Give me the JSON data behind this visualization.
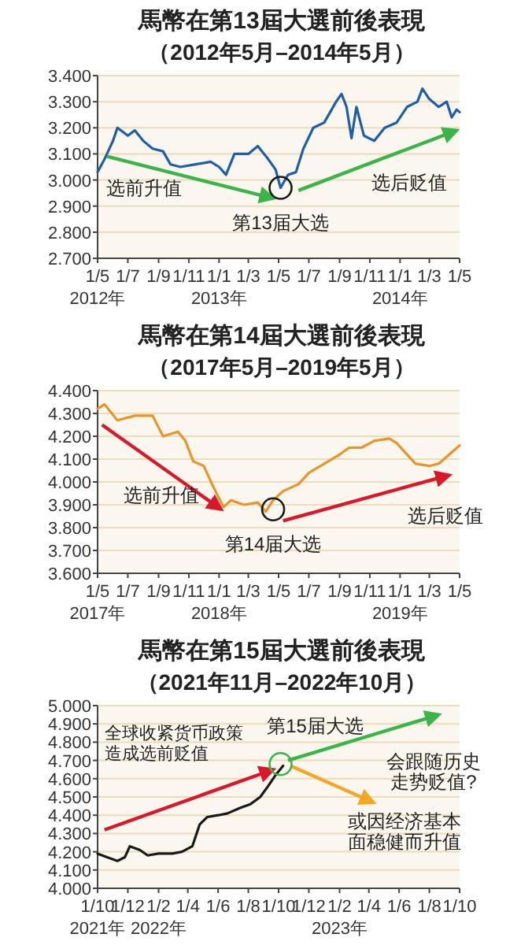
{
  "chart_data": [
    {
      "type": "line",
      "title": "馬幣在第13屆大選前後表現",
      "subtitle": "（2012年5月–2014年5月）",
      "grid": "y",
      "line_style": "solid",
      "marker": "none",
      "xlim": [
        "2012-05-01",
        "2014-05-01"
      ],
      "ylim": [
        2.7,
        3.4
      ],
      "xticks": [
        {
          "value": "2012-05-01",
          "label": "1/5\n2012年"
        },
        {
          "value": "2012-07-01",
          "label": "1/7"
        },
        {
          "value": "2012-09-01",
          "label": "1/9"
        },
        {
          "value": "2012-11-01",
          "label": "1/11"
        },
        {
          "value": "2013-01-01",
          "label": "1/1\n2013年"
        },
        {
          "value": "2013-03-01",
          "label": "1/3"
        },
        {
          "value": "2013-05-01",
          "label": "1/5"
        },
        {
          "value": "2013-07-01",
          "label": "1/7"
        },
        {
          "value": "2013-09-01",
          "label": "1/9"
        },
        {
          "value": "2013-11-01",
          "label": "1/11"
        },
        {
          "value": "2014-01-01",
          "label": "1/1\n2014年"
        },
        {
          "value": "2014-03-01",
          "label": "1/3"
        },
        {
          "value": "2014-05-01",
          "label": "1/5"
        }
      ],
      "yticks": [
        {
          "value": 2.7,
          "label": "2.700"
        },
        {
          "value": 2.8,
          "label": "2.800"
        },
        {
          "value": 2.9,
          "label": "2.900"
        },
        {
          "value": 3.0,
          "label": "3.000"
        },
        {
          "value": 3.1,
          "label": "3.100"
        },
        {
          "value": 3.2,
          "label": "3.200"
        },
        {
          "value": 3.3,
          "label": "3.300"
        },
        {
          "value": 3.4,
          "label": "3.400"
        }
      ],
      "annotations": [
        {
          "text": "第13届大选",
          "x": "2013-05-05",
          "y": 2.97
        }
      ],
      "series": [
        {
          "color": "#1f5fa8",
          "x": [
            "2012-05-01",
            "2012-05-15",
            "2012-06-01",
            "2012-06-10",
            "2012-07-01",
            "2012-07-15",
            "2012-08-01",
            "2012-08-20",
            "2012-09-10",
            "2012-09-25",
            "2012-10-15",
            "2012-11-15",
            "2012-12-15",
            "2013-01-01",
            "2013-01-15",
            "2013-02-01",
            "2013-03-01",
            "2013-03-20",
            "2013-04-10",
            "2013-04-25",
            "2013-05-05",
            "2013-05-20",
            "2013-06-05",
            "2013-06-20",
            "2013-07-10",
            "2013-08-01",
            "2013-08-25",
            "2013-09-05",
            "2013-09-15",
            "2013-09-25",
            "2013-10-05",
            "2013-10-20",
            "2013-11-10",
            "2013-12-01",
            "2013-12-25",
            "2014-01-15",
            "2014-02-05",
            "2014-02-15",
            "2014-03-01",
            "2014-03-20",
            "2014-04-05",
            "2014-04-15",
            "2014-04-25",
            "2014-05-01"
          ],
          "values": [
            3.03,
            3.08,
            3.15,
            3.2,
            3.17,
            3.19,
            3.15,
            3.12,
            3.11,
            3.06,
            3.05,
            3.06,
            3.07,
            3.05,
            3.02,
            3.1,
            3.1,
            3.13,
            3.08,
            3.04,
            2.97,
            3.02,
            3.03,
            3.12,
            3.2,
            3.22,
            3.3,
            3.33,
            3.28,
            3.16,
            3.28,
            3.17,
            3.15,
            3.2,
            3.22,
            3.28,
            3.3,
            3.35,
            3.31,
            3.28,
            3.3,
            3.24,
            3.27,
            3.26
          ]
        },
        {
          "type": "line",
          "name": "选前升值",
          "color": "#3bb54a",
          "x": [
            "2012-05-20",
            "2013-04-20"
          ],
          "values": [
            3.09,
            2.93
          ]
        },
        {
          "type": "line",
          "name": "选后贬值",
          "color": "#3bb54a",
          "x": [
            "2013-06-10",
            "2014-04-25"
          ],
          "values": [
            2.96,
            3.19
          ]
        }
      ]
    },
    {
      "type": "line",
      "title": "馬幣在第14屆大選前後表現",
      "subtitle": "（2017年5月–2019年5月）",
      "grid": "y",
      "line_style": "solid",
      "marker": "none",
      "xlim": [
        "2017-05-01",
        "2019-05-01"
      ],
      "ylim": [
        3.6,
        4.4
      ],
      "xticks": [
        {
          "value": "2017-05-01",
          "label": "1/5\n2017年"
        },
        {
          "value": "2017-07-01",
          "label": "1/7"
        },
        {
          "value": "2017-09-01",
          "label": "1/9"
        },
        {
          "value": "2017-11-01",
          "label": "1/11"
        },
        {
          "value": "2018-01-01",
          "label": "1/1\n2018年"
        },
        {
          "value": "2018-03-01",
          "label": "1/3"
        },
        {
          "value": "2018-05-01",
          "label": "1/5"
        },
        {
          "value": "2018-07-01",
          "label": "1/7"
        },
        {
          "value": "2018-09-01",
          "label": "1/9"
        },
        {
          "value": "2018-11-01",
          "label": "1/11"
        },
        {
          "value": "2019-01-01",
          "label": "1/1\n2019年"
        },
        {
          "value": "2019-03-01",
          "label": "1/3"
        },
        {
          "value": "2019-05-01",
          "label": "1/5"
        }
      ],
      "yticks": [
        {
          "value": 3.6,
          "label": "3.600"
        },
        {
          "value": 3.7,
          "label": "3.700"
        },
        {
          "value": 3.8,
          "label": "3.800"
        },
        {
          "value": 3.9,
          "label": "3.900"
        },
        {
          "value": 4.0,
          "label": "4.000"
        },
        {
          "value": 4.1,
          "label": "4.100"
        },
        {
          "value": 4.2,
          "label": "4.200"
        },
        {
          "value": 4.3,
          "label": "4.300"
        },
        {
          "value": 4.4,
          "label": "4.400"
        }
      ],
      "annotations": [
        {
          "text": "第14届大选",
          "x": "2018-04-20",
          "y": 3.88
        }
      ],
      "series": [
        {
          "color": "#e8962a",
          "x": [
            "2017-05-01",
            "2017-05-15",
            "2017-06-10",
            "2017-07-15",
            "2017-08-20",
            "2017-09-10",
            "2017-10-10",
            "2017-10-25",
            "2017-11-10",
            "2017-12-01",
            "2017-12-20",
            "2018-01-10",
            "2018-01-25",
            "2018-02-20",
            "2018-03-20",
            "2018-04-05",
            "2018-04-20",
            "2018-05-10",
            "2018-06-10",
            "2018-07-01",
            "2018-08-01",
            "2018-09-01",
            "2018-09-20",
            "2018-10-15",
            "2018-11-10",
            "2018-12-10",
            "2018-12-25",
            "2019-01-15",
            "2019-02-01",
            "2019-03-01",
            "2019-03-20",
            "2019-04-10",
            "2019-05-01"
          ],
          "values": [
            4.32,
            4.34,
            4.27,
            4.29,
            4.29,
            4.2,
            4.22,
            4.18,
            4.09,
            4.07,
            3.98,
            3.89,
            3.92,
            3.9,
            3.91,
            3.87,
            3.92,
            3.96,
            3.99,
            4.04,
            4.08,
            4.12,
            4.15,
            4.15,
            4.18,
            4.19,
            4.17,
            4.12,
            4.08,
            4.07,
            4.08,
            4.12,
            4.16
          ]
        },
        {
          "type": "line",
          "name": "选前升值",
          "color": "#d7192b",
          "x": [
            "2017-05-10",
            "2018-01-05"
          ],
          "values": [
            4.25,
            3.88
          ]
        },
        {
          "type": "line",
          "name": "选后贬值",
          "color": "#d7192b",
          "x": [
            "2018-05-10",
            "2019-04-10"
          ],
          "values": [
            3.83,
            4.03
          ]
        }
      ]
    },
    {
      "type": "line",
      "title": "馬幣在第15屆大選前後表現",
      "subtitle": "（2021年11月–2022年10月）",
      "grid": "y",
      "line_style": "solid",
      "marker": "none",
      "xlim": [
        "2021-10-01",
        "2023-10-01"
      ],
      "ylim": [
        4.0,
        5.0
      ],
      "xticks": [
        {
          "value": "2021-10-01",
          "label": "1/10\n2021年"
        },
        {
          "value": "2021-12-01",
          "label": "1/12"
        },
        {
          "value": "2022-02-01",
          "label": "1/2\n2022年"
        },
        {
          "value": "2022-04-01",
          "label": "1/4"
        },
        {
          "value": "2022-06-01",
          "label": "1/6"
        },
        {
          "value": "2022-08-01",
          "label": "1/8"
        },
        {
          "value": "2022-10-01",
          "label": "1/10"
        },
        {
          "value": "2022-12-01",
          "label": "1/12"
        },
        {
          "value": "2023-02-01",
          "label": "1/2\n2023年"
        },
        {
          "value": "2023-04-01",
          "label": "1/4"
        },
        {
          "value": "2023-06-01",
          "label": "1/6"
        },
        {
          "value": "2023-08-01",
          "label": "1/8"
        },
        {
          "value": "2023-10-01",
          "label": "1/10"
        }
      ],
      "yticks": [
        {
          "value": 4.0,
          "label": "4.000"
        },
        {
          "value": 4.1,
          "label": "4.100"
        },
        {
          "value": 4.2,
          "label": "4.200"
        },
        {
          "value": 4.3,
          "label": "4.300"
        },
        {
          "value": 4.4,
          "label": "4.400"
        },
        {
          "value": 4.5,
          "label": "4.500"
        },
        {
          "value": 4.6,
          "label": "4.600"
        },
        {
          "value": 4.7,
          "label": "4.700"
        },
        {
          "value": 4.8,
          "label": "4.800"
        },
        {
          "value": 4.9,
          "label": "4.900"
        },
        {
          "value": 5.0,
          "label": "5.000"
        }
      ],
      "annotations": [
        {
          "text": "第15届大选",
          "x": "2022-10-05",
          "y": 4.68
        }
      ],
      "series": [
        {
          "color": "#1a1a1a",
          "x": [
            "2021-10-01",
            "2021-10-20",
            "2021-11-10",
            "2021-11-25",
            "2021-12-05",
            "2021-12-25",
            "2022-01-10",
            "2022-02-01",
            "2022-03-01",
            "2022-03-20",
            "2022-04-10",
            "2022-04-25",
            "2022-05-10",
            "2022-06-01",
            "2022-06-20",
            "2022-07-15",
            "2022-08-05",
            "2022-08-25",
            "2022-09-10",
            "2022-09-25",
            "2022-10-10"
          ],
          "values": [
            4.19,
            4.17,
            4.15,
            4.17,
            4.23,
            4.21,
            4.18,
            4.19,
            4.19,
            4.2,
            4.23,
            4.35,
            4.39,
            4.4,
            4.41,
            4.44,
            4.46,
            4.5,
            4.56,
            4.62,
            4.67
          ]
        },
        {
          "type": "line",
          "name": "全球收紧货币政策造成选前贬值",
          "color": "#d7192b",
          "x": [
            "2021-10-15",
            "2022-09-20"
          ],
          "values": [
            4.32,
            4.65
          ]
        },
        {
          "type": "line",
          "name": "会跟随历史走势贬值?",
          "color": "#3bb54a",
          "x": [
            "2022-10-20",
            "2023-08-20"
          ],
          "values": [
            4.7,
            4.95
          ]
        },
        {
          "type": "line",
          "name": "或因经济基本面稳健而升值",
          "color": "#f5a623",
          "x": [
            "2022-10-25",
            "2023-04-10"
          ],
          "values": [
            4.67,
            4.47
          ]
        }
      ]
    }
  ]
}
